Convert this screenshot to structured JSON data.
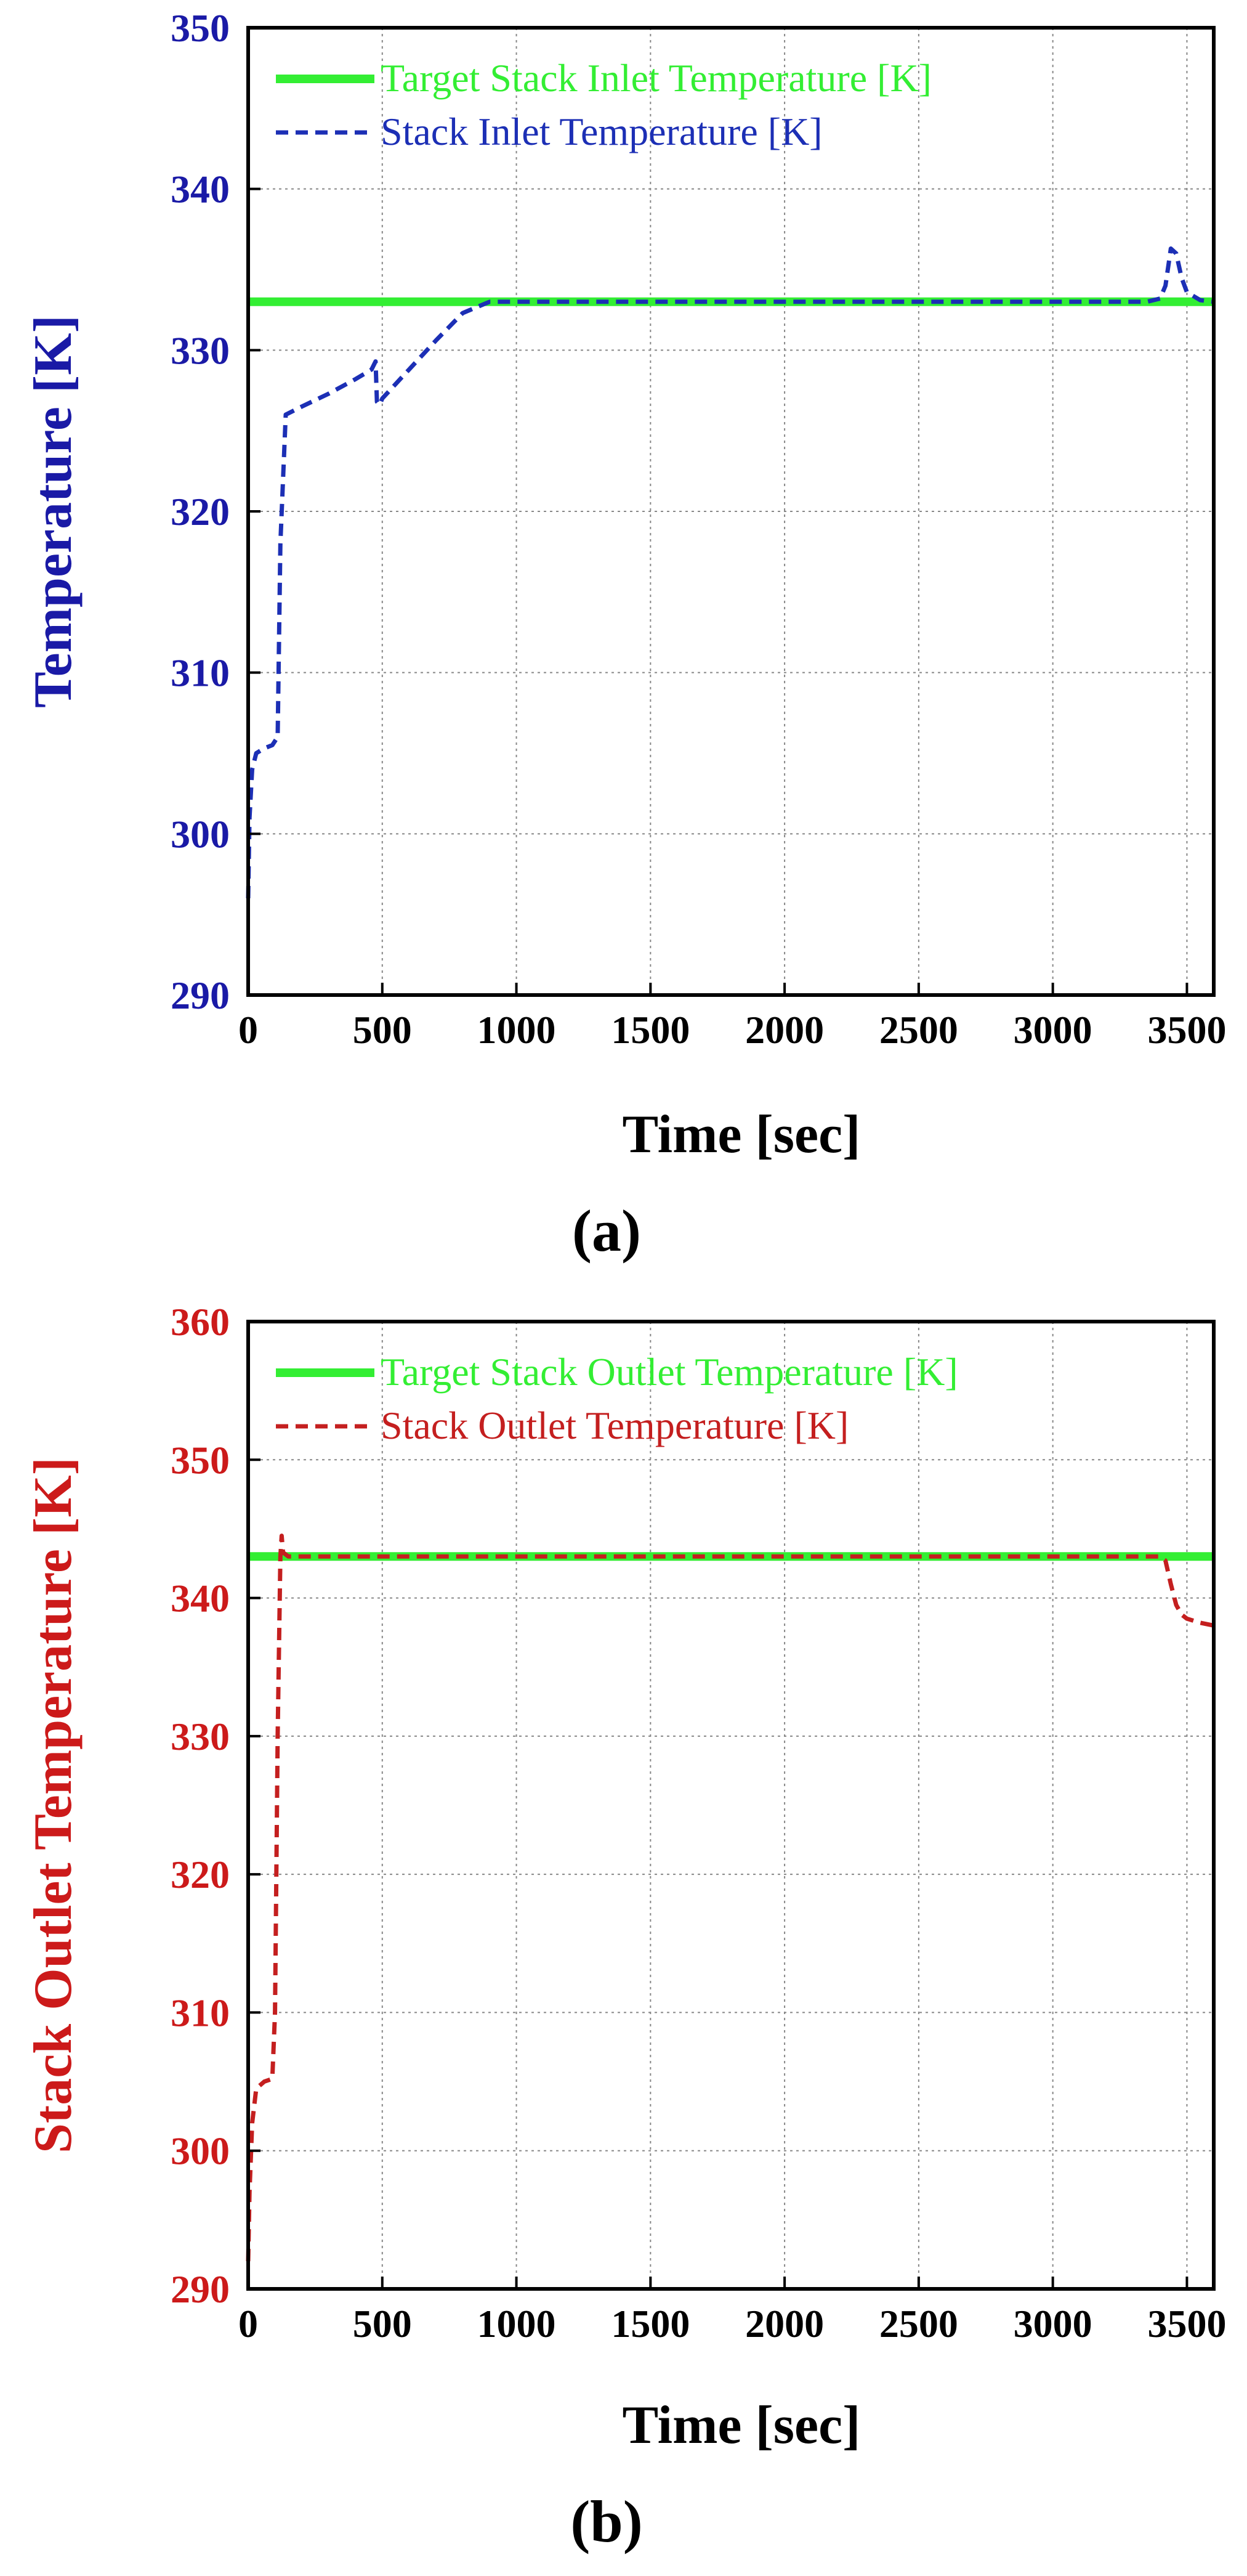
{
  "chart_data": [
    {
      "type": "line",
      "panel_label": "(a)",
      "xlabel": "Time [sec]",
      "ylabel": "Temperature [K]",
      "ylabel_color": "#1a1aa6",
      "tick_color": "#1a1aa6",
      "xlim": [
        0,
        3600
      ],
      "ylim": [
        290,
        350
      ],
      "xticks": [
        0,
        500,
        1000,
        1500,
        2000,
        2500,
        3000,
        3500
      ],
      "yticks": [
        290,
        300,
        310,
        320,
        330,
        340,
        350
      ],
      "grid": true,
      "legend_position": "top-left",
      "series": [
        {
          "name": "Target Stack Inlet Temperature [K]",
          "color": "#33ee33",
          "style": "solid",
          "x": [
            0,
            3600
          ],
          "y": [
            333,
            333
          ]
        },
        {
          "name": "Stack Inlet Temperature [K]",
          "color": "#1c2fb5",
          "style": "dashed",
          "x": [
            0,
            5,
            15,
            30,
            60,
            90,
            110,
            120,
            140,
            200,
            300,
            400,
            460,
            475,
            480,
            490,
            500,
            600,
            700,
            800,
            900,
            950,
            1500,
            2000,
            2500,
            3000,
            3350,
            3400,
            3420,
            3440,
            3460,
            3480,
            3500,
            3550,
            3600
          ],
          "y": [
            296,
            301,
            304,
            305,
            305.3,
            305.5,
            306,
            318,
            326,
            326.5,
            327.3,
            328.2,
            328.8,
            329.3,
            326.8,
            326.6,
            327,
            328.8,
            330.6,
            332.3,
            333,
            333,
            333,
            333,
            333,
            333,
            333,
            333.2,
            334,
            336.3,
            336,
            334.5,
            333.6,
            333.1,
            333
          ]
        }
      ]
    },
    {
      "type": "line",
      "panel_label": "(b)",
      "xlabel": "Time [sec]",
      "ylabel": "Stack Outlet Temperature [K]",
      "ylabel_color": "#cc1a1a",
      "tick_color": "#cc1a1a",
      "xlim": [
        0,
        3600
      ],
      "ylim": [
        290,
        360
      ],
      "xticks": [
        0,
        500,
        1000,
        1500,
        2000,
        2500,
        3000,
        3500
      ],
      "yticks": [
        290,
        300,
        310,
        320,
        330,
        340,
        350,
        360
      ],
      "grid": true,
      "legend_position": "top-left",
      "series": [
        {
          "name": "Target Stack Outlet Temperature [K]",
          "color": "#33ee33",
          "style": "solid",
          "x": [
            0,
            3600
          ],
          "y": [
            343,
            343
          ]
        },
        {
          "name": "Stack Outlet Temperature [K]",
          "color": "#c41f1f",
          "style": "dashed",
          "x": [
            0,
            5,
            15,
            30,
            60,
            90,
            100,
            110,
            120,
            125,
            130,
            150,
            200,
            300,
            1000,
            2000,
            3000,
            3350,
            3400,
            3420,
            3440,
            3460,
            3480,
            3500,
            3550,
            3600
          ],
          "y": [
            292,
            297,
            302,
            304.5,
            305,
            305.2,
            310,
            330,
            343,
            344.5,
            343.3,
            343,
            343,
            343,
            343,
            343,
            343,
            343,
            343,
            342.7,
            341,
            339.5,
            338.8,
            338.5,
            338.2,
            338
          ]
        }
      ]
    }
  ]
}
